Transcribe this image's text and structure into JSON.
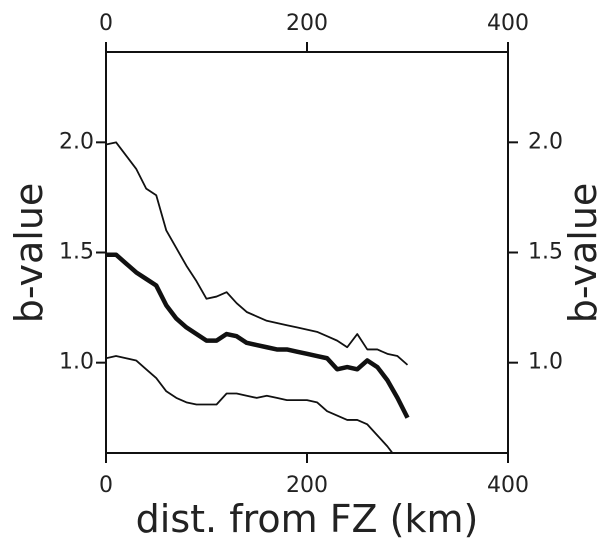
{
  "chart_data": {
    "type": "line",
    "xlabel": "dist. from FZ (km)",
    "ylabel": "b-value",
    "xlim": [
      0,
      400
    ],
    "ylim": [
      0.59,
      2.41
    ],
    "xticks": [
      0,
      200,
      400
    ],
    "yticks": [
      {
        "value": 1,
        "label": "1.0"
      },
      {
        "value": 1.5,
        "label": "1.5"
      },
      {
        "value": 2,
        "label": "2.0"
      }
    ],
    "x": [
      0,
      10,
      20,
      30,
      40,
      50,
      60,
      70,
      80,
      90,
      100,
      110,
      120,
      130,
      140,
      150,
      160,
      170,
      180,
      190,
      200,
      210,
      220,
      230,
      240,
      250,
      260,
      270,
      280,
      290,
      300
    ],
    "series": [
      {
        "color": "#111111",
        "width": 4.5,
        "values": [
          1.49,
          1.49,
          1.45,
          1.41,
          1.38,
          1.35,
          1.26,
          1.2,
          1.16,
          1.13,
          1.1,
          1.1,
          1.13,
          1.12,
          1.09,
          1.08,
          1.07,
          1.06,
          1.06,
          1.05,
          1.04,
          1.03,
          1.02,
          0.97,
          0.98,
          0.97,
          1.01,
          0.98,
          0.92,
          0.84,
          0.75
        ]
      },
      {
        "color": "#111111",
        "width": 1.8,
        "values": [
          1.99,
          2.0,
          1.94,
          1.88,
          1.79,
          1.76,
          1.6,
          1.52,
          1.44,
          1.37,
          1.29,
          1.3,
          1.32,
          1.27,
          1.23,
          1.21,
          1.19,
          1.18,
          1.17,
          1.16,
          1.15,
          1.14,
          1.12,
          1.1,
          1.07,
          1.13,
          1.06,
          1.06,
          1.04,
          1.03,
          0.99
        ]
      },
      {
        "color": "#111111",
        "width": 1.8,
        "values": [
          1.02,
          1.03,
          1.02,
          1.01,
          0.97,
          0.93,
          0.87,
          0.84,
          0.82,
          0.81,
          0.81,
          0.81,
          0.86,
          0.86,
          0.85,
          0.84,
          0.85,
          0.84,
          0.83,
          0.83,
          0.83,
          0.82,
          0.78,
          0.76,
          0.74,
          0.74,
          0.72,
          0.67,
          0.62,
          0.56,
          null
        ]
      }
    ]
  }
}
